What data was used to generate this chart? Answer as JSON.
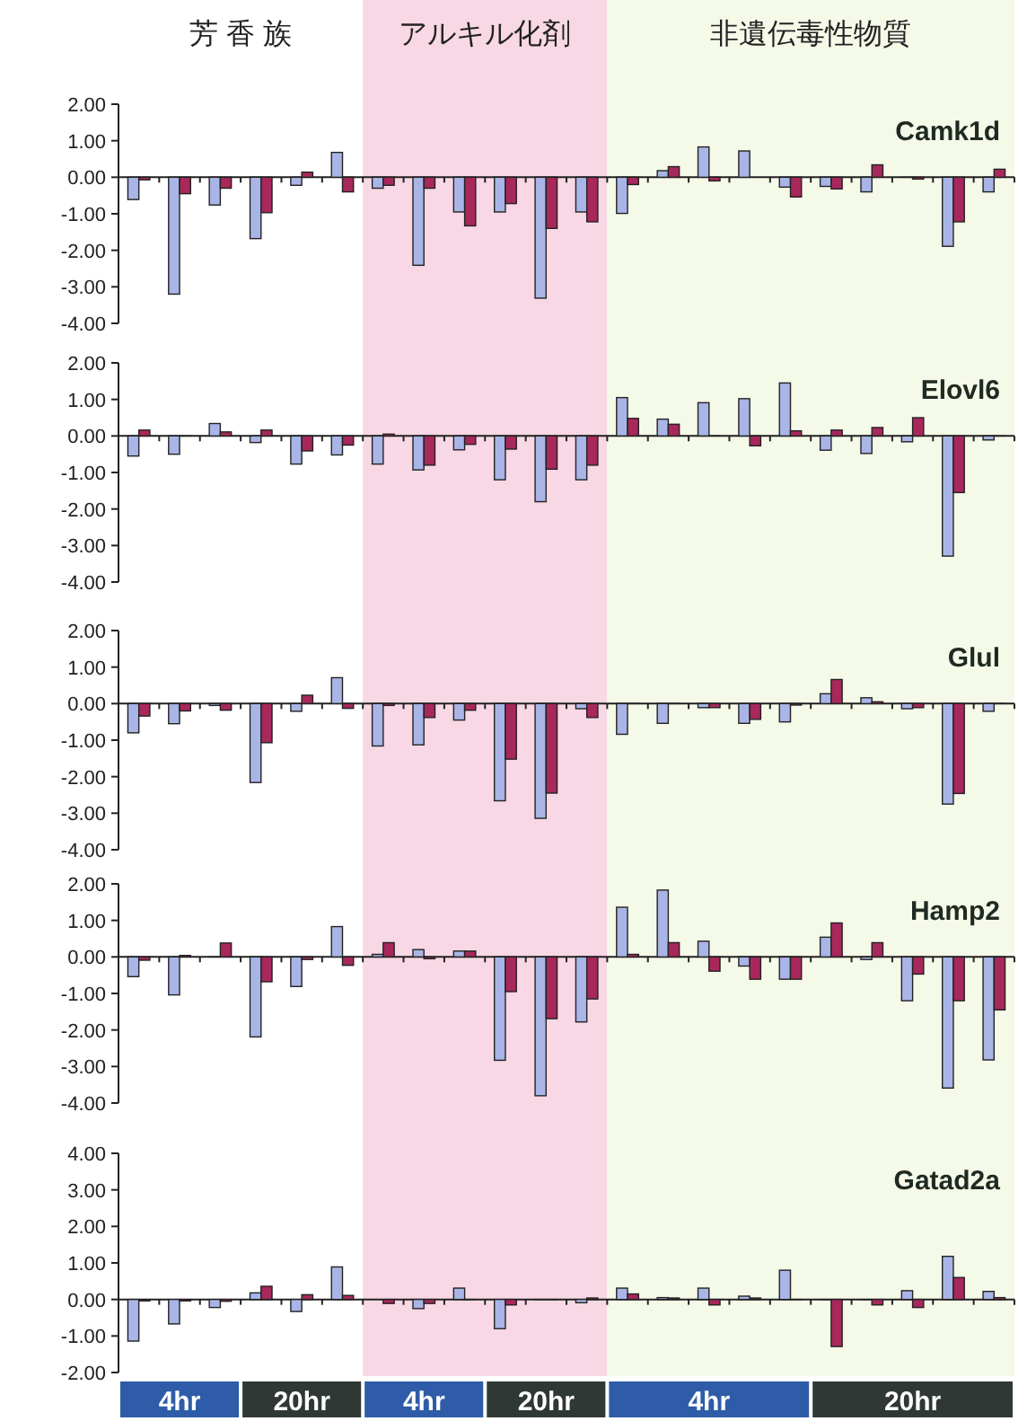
{
  "chart_data": [
    {
      "type": "bar",
      "title": "Camk1d",
      "categories": [
        null,
        null,
        null,
        null,
        null,
        null,
        null,
        null,
        null,
        null,
        null,
        null,
        null,
        null,
        null,
        null,
        null,
        null,
        null,
        null,
        null,
        null
      ],
      "series": [
        {
          "color": "#a9b5e6",
          "values": [
            -0.61,
            -3.2,
            -0.76,
            -1.68,
            -0.22,
            0.68,
            -0.3,
            -2.41,
            -0.95,
            -0.95,
            -3.31,
            -0.95,
            -0.99,
            0.18,
            0.83,
            0.72,
            -0.27,
            -0.25,
            -0.4,
            0,
            -1.89,
            -0.4
          ]
        },
        {
          "color": "#a8285c",
          "values": [
            -0.07,
            -0.45,
            -0.3,
            -0.97,
            0.14,
            -0.4,
            -0.22,
            -0.3,
            -1.33,
            -0.72,
            -1.4,
            -1.22,
            -0.2,
            0.29,
            -0.1,
            null,
            -0.54,
            -0.32,
            0.34,
            -0.05,
            -1.22,
            0.22
          ]
        }
      ],
      "ylim": [
        -4,
        2
      ],
      "yticks": [
        {
          "value": -4,
          "label": "-4.00"
        },
        {
          "value": -3,
          "label": "-3.00"
        },
        {
          "value": -2,
          "label": "-2.00"
        },
        {
          "value": -1,
          "label": "-1.00"
        },
        {
          "value": 0,
          "label": "0.00"
        },
        {
          "value": 1,
          "label": "1.00"
        },
        {
          "value": 2,
          "label": "2.00"
        }
      ],
      "annotations": [
        "芳 香 族",
        "アルキル化剤",
        "非遺伝毒性物質"
      ]
    },
    {
      "type": "bar",
      "title": "Elovl6",
      "categories": [
        null,
        null,
        null,
        null,
        null,
        null,
        null,
        null,
        null,
        null,
        null,
        null,
        null,
        null,
        null,
        null,
        null,
        null,
        null,
        null,
        null,
        null
      ],
      "series": [
        {
          "color": "#a9b5e6",
          "values": [
            -0.55,
            -0.5,
            0.34,
            -0.18,
            -0.77,
            -0.52,
            -0.77,
            -0.93,
            -0.38,
            -1.2,
            -1.8,
            -1.2,
            1.05,
            0.46,
            0.91,
            1.02,
            1.45,
            -0.39,
            -0.48,
            -0.16,
            -3.29,
            -0.11
          ]
        },
        {
          "color": "#a8285c",
          "values": [
            0.16,
            0,
            0.11,
            0.16,
            -0.41,
            -0.25,
            0.05,
            -0.8,
            -0.23,
            -0.36,
            -0.91,
            -0.8,
            0.48,
            0.32,
            0,
            -0.27,
            0.14,
            0.16,
            0.23,
            0.5,
            -1.55,
            0
          ]
        }
      ],
      "ylim": [
        -4,
        2
      ],
      "yticks": [
        {
          "value": -4,
          "label": "-4.00"
        },
        {
          "value": -3,
          "label": "-3.00"
        },
        {
          "value": -2,
          "label": "-2.00"
        },
        {
          "value": -1,
          "label": "-1.00"
        },
        {
          "value": 0,
          "label": "0.00"
        },
        {
          "value": 1,
          "label": "1.00"
        },
        {
          "value": 2,
          "label": "2.00"
        }
      ]
    },
    {
      "type": "bar",
      "title": "Glul",
      "categories": [
        null,
        null,
        null,
        null,
        null,
        null,
        null,
        null,
        null,
        null,
        null,
        null,
        null,
        null,
        null,
        null,
        null,
        null,
        null,
        null,
        null,
        null
      ],
      "series": [
        {
          "color": "#a9b5e6",
          "values": [
            -0.8,
            -0.55,
            -0.05,
            -2.16,
            -0.21,
            0.71,
            -1.16,
            -1.13,
            -0.45,
            -2.66,
            -3.14,
            -0.14,
            -0.84,
            -0.54,
            -0.11,
            -0.54,
            -0.5,
            0.27,
            0.16,
            -0.14,
            -2.75,
            -0.21
          ]
        },
        {
          "color": "#a8285c",
          "values": [
            -0.34,
            -0.2,
            -0.18,
            -1.07,
            0.23,
            -0.13,
            -0.05,
            -0.38,
            -0.18,
            -1.52,
            -2.45,
            -0.38,
            0,
            0,
            -0.11,
            -0.43,
            -0.04,
            0.66,
            0.05,
            -0.11,
            -2.46,
            0
          ]
        }
      ],
      "ylim": [
        -4,
        2
      ],
      "yticks": [
        {
          "value": -4,
          "label": "-4.00"
        },
        {
          "value": -3,
          "label": "-3.00"
        },
        {
          "value": -2,
          "label": "-2.00"
        },
        {
          "value": -1,
          "label": "-1.00"
        },
        {
          "value": 0,
          "label": "0.00"
        },
        {
          "value": 1,
          "label": "1.00"
        },
        {
          "value": 2,
          "label": "2.00"
        }
      ]
    },
    {
      "type": "bar",
      "title": "Hamp2",
      "categories": [
        null,
        null,
        null,
        null,
        null,
        null,
        null,
        null,
        null,
        null,
        null,
        null,
        null,
        null,
        null,
        null,
        null,
        null,
        null,
        null,
        null,
        null
      ],
      "series": [
        {
          "color": "#a9b5e6",
          "values": [
            -0.54,
            -1.04,
            0,
            -2.19,
            -0.81,
            0.83,
            0.07,
            0.2,
            0.16,
            -2.83,
            -3.8,
            -1.78,
            1.36,
            1.83,
            0.43,
            -0.25,
            -0.61,
            0.54,
            -0.07,
            -1.2,
            -3.59,
            -2.82
          ]
        },
        {
          "color": "#a8285c",
          "values": [
            -0.09,
            0.04,
            0.38,
            -0.68,
            -0.07,
            -0.23,
            0.39,
            -0.05,
            0.16,
            -0.95,
            -1.69,
            -1.15,
            0.07,
            0.39,
            -0.39,
            -0.61,
            -0.61,
            0.93,
            0.39,
            -0.47,
            -1.2,
            -1.45
          ]
        }
      ],
      "ylim": [
        -4,
        2
      ],
      "yticks": [
        {
          "value": -4,
          "label": "-4.00"
        },
        {
          "value": -3,
          "label": "-3.00"
        },
        {
          "value": -2,
          "label": "-2.00"
        },
        {
          "value": -1,
          "label": "-1.00"
        },
        {
          "value": 0,
          "label": "0.00"
        },
        {
          "value": 1,
          "label": "1.00"
        },
        {
          "value": 2,
          "label": "2.00"
        }
      ]
    },
    {
      "type": "bar",
      "title": "Gatad2a",
      "categories": [
        null,
        null,
        null,
        null,
        null,
        null,
        null,
        null,
        null,
        null,
        null,
        null,
        null,
        null,
        null,
        null,
        null,
        null,
        null,
        null,
        null,
        null
      ],
      "series": [
        {
          "color": "#a9b5e6",
          "values": [
            -1.14,
            -0.67,
            -0.22,
            0.18,
            -0.33,
            0.89,
            null,
            -0.25,
            0.31,
            -0.8,
            0,
            -0.09,
            0.31,
            0.05,
            0.31,
            0.09,
            0.8,
            0,
            0,
            0.24,
            1.18,
            0.22
          ]
        },
        {
          "color": "#a8285c",
          "values": [
            -0.04,
            -0.04,
            -0.05,
            0.36,
            0.13,
            0.11,
            -0.11,
            -0.11,
            0,
            -0.15,
            0,
            0.04,
            0.15,
            0.04,
            -0.15,
            0.04,
            0,
            -1.29,
            -0.15,
            -0.22,
            0.6,
            0.05
          ]
        }
      ],
      "ylim": [
        -2,
        4
      ],
      "yticks": [
        {
          "value": -2,
          "label": "-2.00"
        },
        {
          "value": -1,
          "label": "-1.00"
        },
        {
          "value": 0,
          "label": "0.00"
        },
        {
          "value": 1,
          "label": "1.00"
        },
        {
          "value": 2,
          "label": "2.00"
        },
        {
          "value": 3,
          "label": "3.00"
        },
        {
          "value": 4,
          "label": "4.00"
        }
      ],
      "annotations": [
        "4hr",
        "20hr",
        "4hr",
        "20hr",
        "4hr",
        "20hr"
      ]
    }
  ]
}
